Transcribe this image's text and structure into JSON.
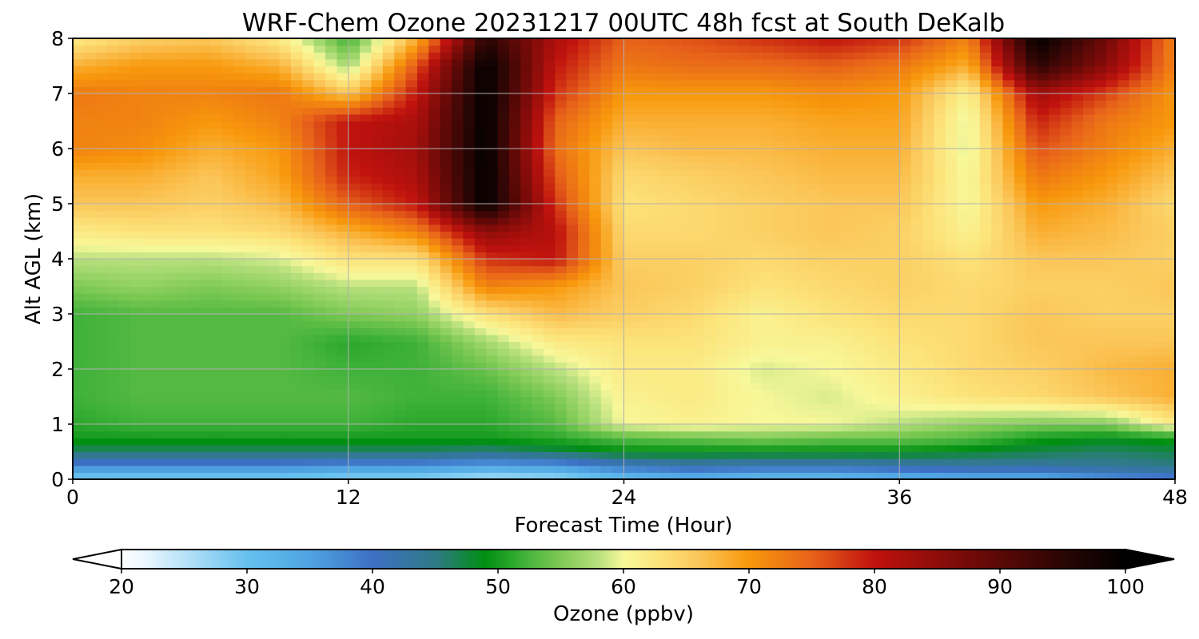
{
  "chart_data": {
    "type": "heatmap",
    "title": "WRF-Chem Ozone  20231217 00UTC 48h fcst at South DeKalb",
    "xlabel": "Forecast Time (Hour)",
    "ylabel": "Alt AGL (km)",
    "xlim": [
      0,
      48
    ],
    "ylim": [
      0,
      8
    ],
    "x_ticks": [
      "0",
      "12",
      "24",
      "36",
      "48"
    ],
    "y_ticks": [
      "0",
      "1",
      "2",
      "3",
      "4",
      "5",
      "6",
      "7",
      "8"
    ],
    "grid": true,
    "x": [
      0,
      3,
      6,
      9,
      12,
      15,
      18,
      21,
      24,
      27,
      30,
      33,
      36,
      39,
      42,
      45,
      48
    ],
    "y": [
      0,
      0.25,
      0.5,
      0.75,
      1,
      1.5,
      2,
      2.5,
      3,
      3.5,
      4,
      4.5,
      5,
      5.5,
      6,
      6.5,
      7,
      7.5,
      8
    ],
    "z": [
      [
        28,
        28,
        28,
        28,
        27,
        27,
        25,
        26,
        30,
        32,
        30,
        30,
        32,
        33,
        33,
        36,
        38
      ],
      [
        38,
        38,
        38,
        38,
        37,
        37,
        35,
        36,
        40,
        42,
        41,
        41,
        42,
        43,
        43,
        44,
        45
      ],
      [
        46,
        46,
        46,
        46,
        46,
        46,
        45,
        47,
        49,
        49,
        49,
        49,
        49,
        48,
        47,
        46,
        47
      ],
      [
        50,
        50,
        50,
        50,
        50,
        50,
        50,
        51,
        53,
        54,
        55,
        54,
        54,
        53,
        50,
        49,
        50
      ],
      [
        51,
        52,
        52,
        52,
        52,
        51,
        51,
        53,
        60,
        61,
        60,
        60,
        58,
        56,
        55,
        55,
        62
      ],
      [
        52,
        53,
        53,
        53,
        53,
        52,
        52,
        55,
        61,
        62,
        60,
        59,
        61,
        63,
        64,
        66,
        68
      ],
      [
        52,
        53,
        53,
        53,
        52,
        52,
        54,
        58,
        62,
        62,
        59,
        60,
        62,
        64,
        65,
        67,
        68
      ],
      [
        52,
        53,
        53,
        53,
        51,
        52,
        57,
        62,
        63,
        63,
        61,
        61,
        63,
        64,
        66,
        66,
        66
      ],
      [
        52,
        53,
        53,
        53,
        55,
        56,
        63,
        67,
        65,
        64,
        61,
        63,
        64,
        64,
        66,
        65,
        65
      ],
      [
        55,
        56,
        55,
        56,
        58,
        58,
        72,
        70,
        66,
        65,
        63,
        64,
        65,
        64,
        65,
        65,
        66
      ],
      [
        58,
        58,
        58,
        59,
        63,
        63,
        78,
        80,
        65,
        65,
        64,
        65,
        65,
        63,
        66,
        66,
        65
      ],
      [
        62,
        63,
        63,
        64,
        68,
        72,
        85,
        81,
        64,
        64,
        65,
        66,
        65,
        61,
        68,
        67,
        65
      ],
      [
        66,
        66,
        65,
        67,
        75,
        80,
        100,
        78,
        63,
        64,
        65,
        66,
        66,
        60,
        70,
        68,
        64
      ],
      [
        68,
        68,
        66,
        69,
        79,
        82,
        100,
        76,
        64,
        65,
        66,
        67,
        67,
        60,
        73,
        70,
        66
      ],
      [
        72,
        71,
        68,
        70,
        80,
        83,
        100,
        74,
        66,
        67,
        67,
        68,
        68,
        59,
        76,
        72,
        68
      ],
      [
        72,
        72,
        70,
        72,
        80,
        82,
        100,
        75,
        68,
        68,
        68,
        69,
        69,
        59,
        79,
        73,
        70
      ],
      [
        73,
        72,
        72,
        73,
        66,
        80,
        100,
        78,
        70,
        70,
        70,
        71,
        70,
        61,
        83,
        77,
        70
      ],
      [
        68,
        70,
        70,
        68,
        57,
        76,
        100,
        80,
        73,
        74,
        74,
        75,
        73,
        68,
        95,
        85,
        72
      ],
      [
        62,
        65,
        66,
        62,
        52,
        68,
        95,
        82,
        75,
        76,
        78,
        80,
        78,
        72,
        100,
        88,
        72
      ]
    ],
    "colorbar": {
      "label": "Ozone  (ppbv)",
      "min": 20,
      "max": 100,
      "ticks": [
        "20",
        "30",
        "40",
        "50",
        "60",
        "70",
        "80",
        "90",
        "100"
      ],
      "extend": "both",
      "stops": [
        [
          20,
          "#ffffff"
        ],
        [
          22,
          "#e8f6fd"
        ],
        [
          26,
          "#a7dcf6"
        ],
        [
          30,
          "#66c0ee"
        ],
        [
          35,
          "#4fa4e2"
        ],
        [
          40,
          "#3d70c4"
        ],
        [
          45,
          "#2f7a86"
        ],
        [
          49,
          "#008f11"
        ],
        [
          52,
          "#3fb13a"
        ],
        [
          55,
          "#7fca54"
        ],
        [
          58,
          "#b8e07e"
        ],
        [
          60,
          "#f8f89a"
        ],
        [
          63,
          "#fce37a"
        ],
        [
          66,
          "#fbc659"
        ],
        [
          70,
          "#f8980c"
        ],
        [
          75,
          "#e7621a"
        ],
        [
          80,
          "#c0120e"
        ],
        [
          88,
          "#6e0a08"
        ],
        [
          95,
          "#2a0604"
        ],
        [
          100,
          "#000000"
        ]
      ]
    }
  }
}
